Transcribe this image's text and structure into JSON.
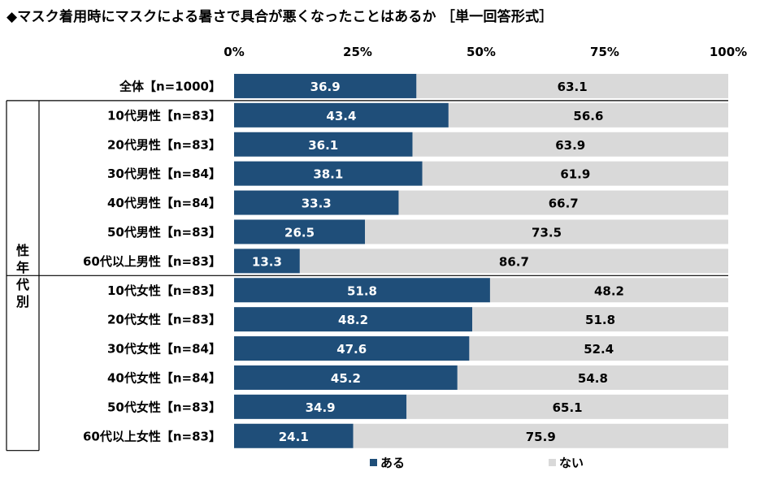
{
  "title": "◆マスク着用時にマスクによる暑さで具合が悪くなったことはあるか ［単一回答形式］",
  "group_label": "性年代別",
  "chart_data": {
    "type": "bar",
    "orientation": "horizontal",
    "stacked": true,
    "percent_scale": true,
    "xlim": [
      0,
      100
    ],
    "xticks": [
      "0%",
      "25%",
      "50%",
      "75%",
      "100%"
    ],
    "categories": [
      "全体【n=1000】",
      "10代男性【n=83】",
      "20代男性【n=83】",
      "30代男性【n=84】",
      "40代男性【n=84】",
      "50代男性【n=83】",
      "60代以上男性【n=83】",
      "10代女性【n=83】",
      "20代女性【n=83】",
      "30代女性【n=84】",
      "40代女性【n=84】",
      "50代女性【n=83】",
      "60代以上女性【n=83】"
    ],
    "series": [
      {
        "name": "ある",
        "color": "#1f4e79",
        "values": [
          36.9,
          43.4,
          36.1,
          38.1,
          33.3,
          26.5,
          13.3,
          51.8,
          48.2,
          47.6,
          45.2,
          34.9,
          24.1
        ]
      },
      {
        "name": "ない",
        "color": "#d9d9d9",
        "values": [
          63.1,
          56.6,
          63.9,
          61.9,
          66.7,
          73.5,
          86.7,
          48.2,
          51.8,
          52.4,
          54.8,
          65.1,
          75.9
        ]
      }
    ],
    "legend_position": "bottom",
    "grid": false
  }
}
